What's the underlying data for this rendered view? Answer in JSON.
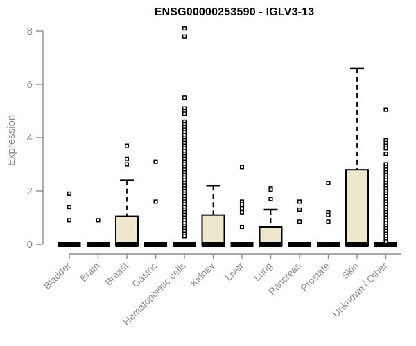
{
  "colors": {
    "box_fill": "#ECE7CD",
    "box_outline": "#000000",
    "axis": "#8C8C8C",
    "tick_label": "#8C8C8C",
    "title": "#000000",
    "outlier_fill": "#FFFFFF",
    "background": "#FFFFFF"
  },
  "chart_data": {
    "type": "boxplot",
    "title": "ENSG00000253590 - IGLV3-13",
    "xlabel": "",
    "ylabel": "Expression",
    "ylim": [
      0,
      8
    ],
    "yticks": [
      0,
      2,
      4,
      6,
      8
    ],
    "grid": false,
    "legend": "none",
    "categories": [
      "Bladder",
      "Brain",
      "Breast",
      "Gastric",
      "Hematopoietic cells",
      "Kidney",
      "Liver",
      "Lung",
      "Pancreas",
      "Prostate",
      "Skin",
      "Unknown / Other"
    ],
    "series": [
      {
        "name": "Bladder",
        "median": 0,
        "q1": 0,
        "q3": 0,
        "whisker_low": 0,
        "whisker_high": 0,
        "outliers": [
          1.9,
          1.4,
          0.9
        ]
      },
      {
        "name": "Brain",
        "median": 0,
        "q1": 0,
        "q3": 0,
        "whisker_low": 0,
        "whisker_high": 0,
        "outliers": [
          0.9
        ]
      },
      {
        "name": "Breast",
        "median": 0,
        "q1": 0,
        "q3": 1.05,
        "whisker_low": 0,
        "whisker_high": 2.4,
        "outliers": [
          3.7,
          3.2,
          3.0
        ]
      },
      {
        "name": "Gastric",
        "median": 0,
        "q1": 0,
        "q3": 0,
        "whisker_low": 0,
        "whisker_high": 0,
        "outliers": [
          3.1,
          1.6
        ]
      },
      {
        "name": "Hematopoietic cells",
        "median": 0,
        "q1": 0,
        "q3": 0,
        "whisker_low": 0,
        "whisker_high": 0,
        "outliers": [
          8.1,
          7.8,
          5.5,
          5.1,
          5.0,
          4.9,
          4.6,
          4.5,
          4.4,
          4.3,
          4.2,
          4.1,
          4.0,
          3.9,
          3.8,
          3.7,
          3.6,
          3.5,
          3.4,
          3.3,
          3.2,
          3.1,
          3.0,
          2.9,
          2.8,
          2.7,
          2.6,
          2.5,
          2.4,
          2.3,
          2.2,
          2.1,
          2.0,
          1.9,
          1.8,
          1.7,
          1.6,
          1.5,
          1.4,
          1.3,
          1.2,
          1.1,
          1.0,
          0.9,
          0.8,
          0.7,
          0.6,
          0.5,
          0.4,
          0.3
        ]
      },
      {
        "name": "Kidney",
        "median": 0,
        "q1": 0,
        "q3": 1.1,
        "whisker_low": 0,
        "whisker_high": 2.2,
        "outliers": []
      },
      {
        "name": "Liver",
        "median": 0,
        "q1": 0,
        "q3": 0,
        "whisker_low": 0,
        "whisker_high": 0,
        "outliers": [
          2.9,
          1.6,
          1.5,
          1.35,
          1.2,
          0.65
        ]
      },
      {
        "name": "Lung",
        "median": 0,
        "q1": 0,
        "q3": 0.65,
        "whisker_low": 0,
        "whisker_high": 1.3,
        "outliers": [
          2.1,
          2.05,
          1.7
        ]
      },
      {
        "name": "Pancreas",
        "median": 0,
        "q1": 0,
        "q3": 0,
        "whisker_low": 0,
        "whisker_high": 0,
        "outliers": [
          1.6,
          1.3,
          0.85
        ]
      },
      {
        "name": "Prostate",
        "median": 0,
        "q1": 0,
        "q3": 0,
        "whisker_low": 0,
        "whisker_high": 0,
        "outliers": [
          2.3,
          1.2,
          1.1,
          0.85
        ]
      },
      {
        "name": "Skin",
        "median": 0,
        "q1": 0,
        "q3": 2.8,
        "whisker_low": 0,
        "whisker_high": 6.6,
        "outliers": []
      },
      {
        "name": "Unknown / Other",
        "median": 0,
        "q1": 0,
        "q3": 0,
        "whisker_low": 0,
        "whisker_high": 0,
        "outliers": [
          5.05,
          3.9,
          3.8,
          3.7,
          3.6,
          3.4,
          3.0,
          2.9,
          2.8,
          2.7,
          2.6,
          2.5,
          2.4,
          2.3,
          2.2,
          2.1,
          2.0,
          1.9,
          1.8,
          1.7,
          1.6,
          1.5,
          1.4,
          1.3,
          1.2,
          1.1,
          1.0,
          0.9,
          0.8,
          0.7,
          0.6,
          0.5,
          0.4,
          0.3,
          0.2,
          0.1
        ]
      }
    ]
  }
}
